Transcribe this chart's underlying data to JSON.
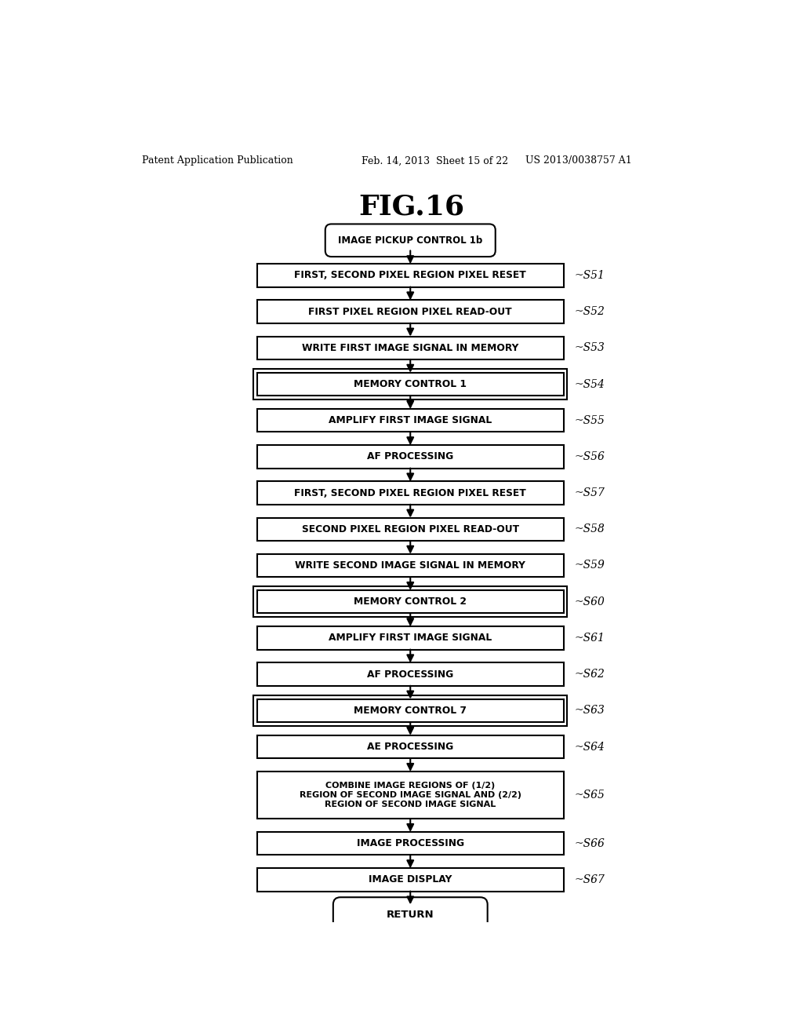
{
  "title": "FIG.16",
  "header_left": "Patent Application Publication",
  "header_center": "Feb. 14, 2013  Sheet 15 of 22",
  "header_right": "US 2013/0038757 A1",
  "start_label": "IMAGE PICKUP CONTROL 1b",
  "end_label": "RETURN",
  "steps": [
    {
      "label": "FIRST, SECOND PIXEL REGION PIXEL RESET",
      "step": "S51",
      "type": "normal"
    },
    {
      "label": "FIRST PIXEL REGION PIXEL READ-OUT",
      "step": "S52",
      "type": "normal"
    },
    {
      "label": "WRITE FIRST IMAGE SIGNAL IN MEMORY",
      "step": "S53",
      "type": "normal"
    },
    {
      "label": "MEMORY CONTROL 1",
      "step": "S54",
      "type": "double_border"
    },
    {
      "label": "AMPLIFY FIRST IMAGE SIGNAL",
      "step": "S55",
      "type": "normal"
    },
    {
      "label": "AF PROCESSING",
      "step": "S56",
      "type": "normal"
    },
    {
      "label": "FIRST, SECOND PIXEL REGION PIXEL RESET",
      "step": "S57",
      "type": "normal"
    },
    {
      "label": "SECOND PIXEL REGION PIXEL READ-OUT",
      "step": "S58",
      "type": "normal"
    },
    {
      "label": "WRITE SECOND IMAGE SIGNAL IN MEMORY",
      "step": "S59",
      "type": "normal"
    },
    {
      "label": "MEMORY CONTROL 2",
      "step": "S60",
      "type": "double_border"
    },
    {
      "label": "AMPLIFY FIRST IMAGE SIGNAL",
      "step": "S61",
      "type": "normal"
    },
    {
      "label": "AF PROCESSING",
      "step": "S62",
      "type": "normal"
    },
    {
      "label": "MEMORY CONTROL 7",
      "step": "S63",
      "type": "double_border"
    },
    {
      "label": "AE PROCESSING",
      "step": "S64",
      "type": "normal"
    },
    {
      "label": "COMBINE IMAGE REGIONS OF (1/2)\nREGION OF SECOND IMAGE SIGNAL AND (2/2)\nREGION OF SECOND IMAGE SIGNAL",
      "step": "S65",
      "type": "tall"
    },
    {
      "label": "IMAGE PROCESSING",
      "step": "S66",
      "type": "normal"
    },
    {
      "label": "IMAGE DISPLAY",
      "step": "S67",
      "type": "normal"
    }
  ]
}
